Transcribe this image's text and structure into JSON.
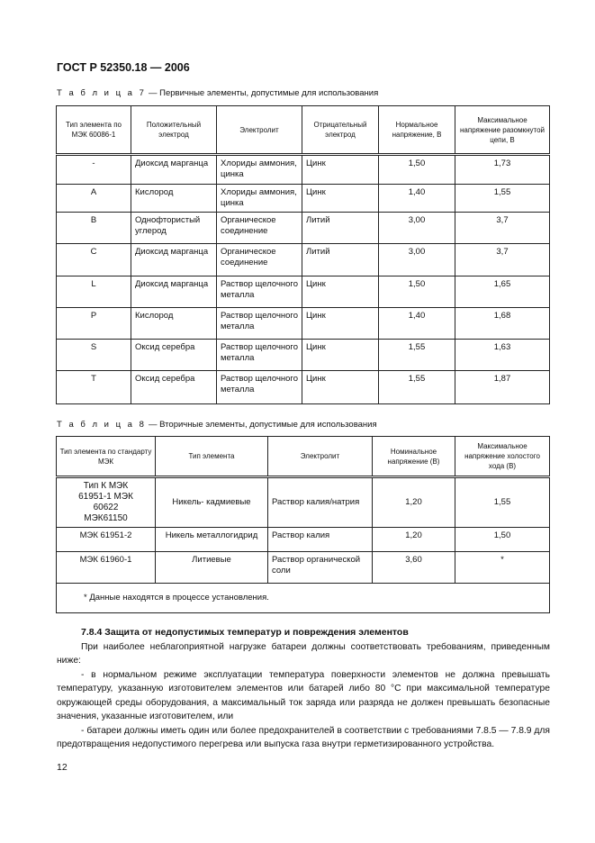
{
  "header": "ГОСТ Р 52350.18 — 2006",
  "table7": {
    "caption_prefix": "Т а б л и ц а  7",
    "caption": " — Первичные элементы, допустимые для использования",
    "columns": [
      "Тип элемента по МЭК 60086-1",
      "Положительный электрод",
      "Электролит",
      "Отрицательный электрод",
      "Нормальное напряжение, В",
      "Максимальное напряжение разомкнутой цепи, В"
    ],
    "rows": [
      [
        "-",
        "Диоксид марганца",
        "Хлориды аммония, цинка",
        "Цинк",
        "1,50",
        "1,73"
      ],
      [
        "A",
        "Кислород",
        "Хлориды аммония, цинка",
        "Цинк",
        "1,40",
        "1,55"
      ],
      [
        "B",
        "Однофтористый углерод",
        "Органическое соединение",
        "Литий",
        "3,00",
        "3,7"
      ],
      [
        "C",
        "Диоксид марганца",
        "Органическое соединение",
        "Литий",
        "3,00",
        "3,7"
      ],
      [
        "L",
        "Диоксид марганца",
        "Раствор щелочного металла",
        "Цинк",
        "1,50",
        "1,65"
      ],
      [
        "P",
        "Кислород",
        "Раствор щелочного металла",
        "Цинк",
        "1,40",
        "1,68"
      ],
      [
        "S",
        "Оксид серебра",
        "Раствор щелочного металла",
        "Цинк",
        "1,55",
        "1,63"
      ],
      [
        "T",
        "Оксид серебра",
        "Раствор щелочного металла",
        "Цинк",
        "1,55",
        "1,87"
      ]
    ]
  },
  "table8": {
    "caption_prefix": "Т а б л и ц а  8",
    "caption": " — Вторичные элементы, допустимые для использования",
    "columns": [
      "Тип элемента по стандарту МЭК",
      "Тип элемента",
      "Электролит",
      "Номинальное напряжение (В)",
      "Максимальное напряжение холостого хода (В)"
    ],
    "rows": [
      [
        "Тип К МЭК 61951-1 МЭК 60622 МЭК61150",
        "Никель- кадмиевые",
        "Раствор калия/натрия",
        "1,20",
        "1,55"
      ],
      [
        "МЭК 61951-2",
        "Никель металлогидрид",
        "Раствор калия",
        "1,20",
        "1,50"
      ],
      [
        "МЭК 61960-1",
        "Литиевые",
        "Раствор органической соли",
        "3,60",
        "*"
      ]
    ],
    "footnote": "* Данные находятся в процессе  установления."
  },
  "section": {
    "heading": "7.8.4 Защита от недопустимых температур и повреждения элементов",
    "paragraphs": [
      "При наиболее неблагоприятной нагрузке батареи должны соответствовать требованиям, приведенным ниже:",
      "- в нормальном режиме эксплуатации температура поверхности элементов не должна превышать температуру, указанную изготовителем элементов или батарей либо 80 °С при максимальной температуре окружающей среды оборудования, а максимальный ток заряда или разряда не должен превышать безопасные значения, указанные изготовителем, или",
      "- батареи должны иметь один или более предохранителей в соответствии с требованиями 7.8.5 — 7.8.9 для предотвращения недопустимого перегрева или выпуска газа внутри герметизированного устройства."
    ]
  },
  "page_number": "12"
}
